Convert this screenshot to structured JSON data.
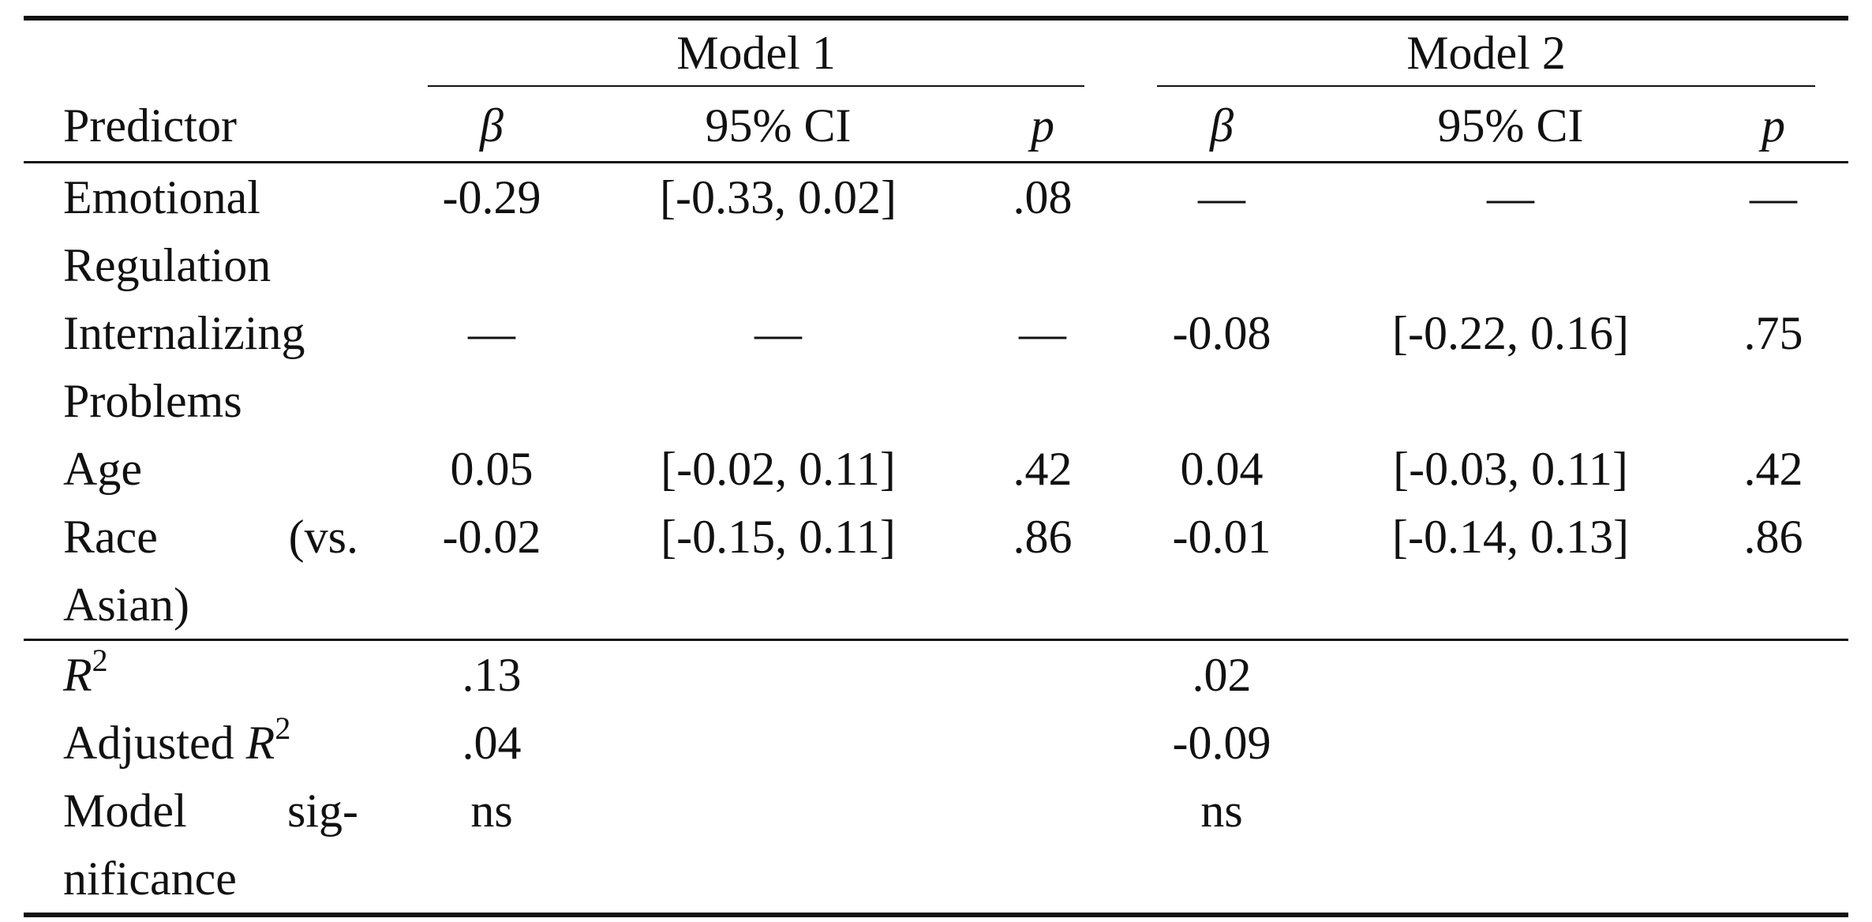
{
  "table": {
    "groups": [
      "Model 1",
      "Model 2"
    ],
    "columns": [
      "Predictor",
      "β",
      "95% CI",
      "p",
      "β",
      "95% CI",
      "p"
    ],
    "rows": [
      {
        "predictor": "Emotional Regulation",
        "cells": [
          "-0.29",
          "[-0.33, 0.02]",
          ".08",
          "—",
          "—",
          "—"
        ]
      },
      {
        "predictor": "Internalizing Problems",
        "cells": [
          "—",
          "—",
          "—",
          "-0.08",
          "[-0.22, 0.16]",
          ".75"
        ]
      },
      {
        "predictor": "Age",
        "cells": [
          "0.05",
          "[-0.02, 0.11]",
          ".42",
          "0.04",
          "[-0.03, 0.11]",
          ".42"
        ]
      },
      {
        "predictor": "Race (vs. Asian)",
        "cells": [
          "-0.02",
          "[-0.15, 0.11]",
          ".86",
          "-0.01",
          "[-0.14, 0.13]",
          ".86"
        ]
      }
    ],
    "fit": [
      {
        "label": {
          "italic": "R",
          "sup": "2"
        },
        "values": [
          ".13",
          ".02"
        ]
      },
      {
        "label": {
          "text": "Adjusted ",
          "italic": "R",
          "sup": "2"
        },
        "values": [
          ".04",
          "-0.09"
        ]
      },
      {
        "label": {
          "text": "Model sig­nificance"
        },
        "values": [
          "ns",
          "ns"
        ]
      }
    ]
  }
}
